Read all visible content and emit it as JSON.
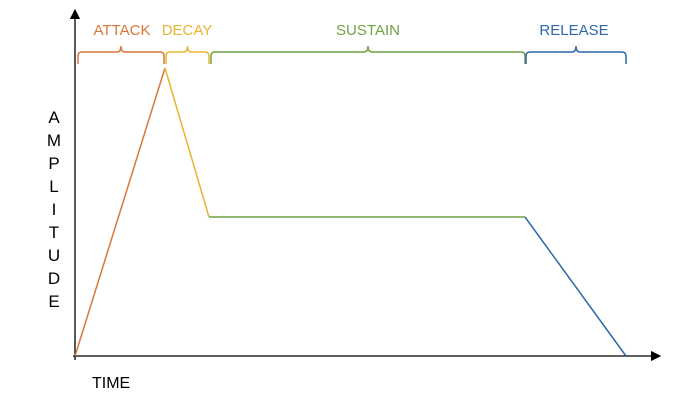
{
  "y_axis_label": [
    "A",
    "M",
    "P",
    "L",
    "I",
    "T",
    "U",
    "D",
    "E"
  ],
  "x_axis_label": "TIME",
  "phases": [
    {
      "label": "ATTACK",
      "color": "#D9773A"
    },
    {
      "label": "DECAY",
      "color": "#E8B530"
    },
    {
      "label": "SUSTAIN",
      "color": "#6FA244"
    },
    {
      "label": "RELEASE",
      "color": "#2F68A8"
    }
  ]
}
